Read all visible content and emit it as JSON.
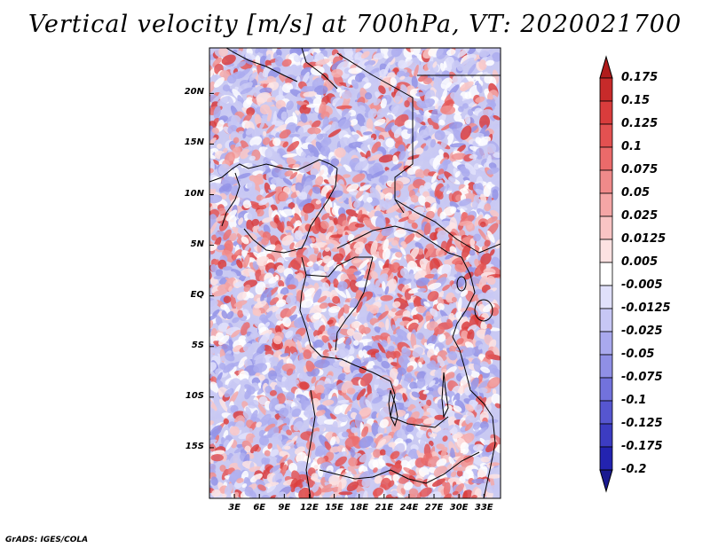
{
  "title": "Vertical velocity [m/s] at 700hPa, VT: 2020021700",
  "credit": "GrADS: IGES/COLA",
  "map": {
    "lat_range": [
      -20,
      24.5
    ],
    "lon_range": [
      0,
      35
    ],
    "lat_ticks": [
      "20N",
      "15N",
      "10N",
      "5N",
      "EQ",
      "5S",
      "10S",
      "15S"
    ],
    "lon_ticks": [
      "3E",
      "6E",
      "9E",
      "12E",
      "15E",
      "18E",
      "21E",
      "24E",
      "27E",
      "30E",
      "33E"
    ],
    "variable": "vertical velocity",
    "units": "m/s",
    "level": "700hPa",
    "valid_time": "2020021700"
  },
  "colorbar": {
    "labels": [
      "0.175",
      "0.15",
      "0.125",
      "0.1",
      "0.075",
      "0.05",
      "0.025",
      "0.0125",
      "0.005",
      "-0.005",
      "-0.0125",
      "-0.025",
      "-0.05",
      "-0.075",
      "-0.1",
      "-0.125",
      "-0.175",
      "-0.2"
    ],
    "colors": [
      "#b01c1c",
      "#c72a2a",
      "#d93c3c",
      "#e35151",
      "#eb6a6a",
      "#f08a8a",
      "#f5a6a6",
      "#f9c4c4",
      "#fde2e2",
      "#ffffff",
      "#e0e0fb",
      "#c7c7f5",
      "#a9a9ee",
      "#8f8fe6",
      "#7272dc",
      "#5656d0",
      "#3c3cc2",
      "#2323b0",
      "#1a1a90"
    ]
  }
}
